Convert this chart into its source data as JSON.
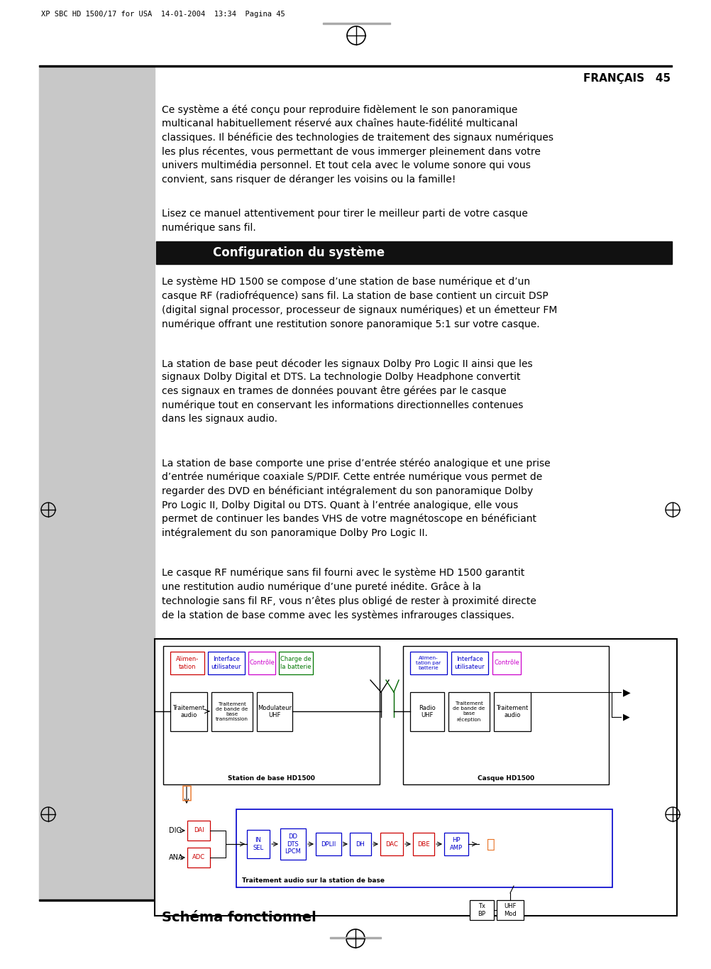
{
  "page_header": "XP SBC HD 1500/17 for USA  14-01-2004  13:34  Pagina 45",
  "section_right": "FRANÇAIS   45",
  "para1": "Ce système a été conçu pour reproduire fidèlement le son panoramique\nmulticanal habituellement réservé aux chaînes haute-fidélité multicanal\nclassiques. Il bénéficie des technologies de traitement des signaux numériques\nles plus récentes, vous permettant de vous immerger pleinement dans votre\nunivers multimédia personnel. Et tout cela avec le volume sonore qui vous\nconvient, sans risquer de déranger les voisins ou la famille!",
  "para2": "Lisez ce manuel attentivement pour tirer le meilleur parti de votre casque\nnumérique sans fil.",
  "section_title": "Configuration du système",
  "para3": "Le système HD 1500 se compose d’une station de base numérique et d’un\ncasque RF (radiofréquence) sans fil. La station de base contient un circuit DSP\n(digital signal processor, processeur de signaux numériques) et un émetteur FM\nnumérique offrant une restitution sonore panoramique 5:1 sur votre casque.",
  "para4": "La station de base peut décoder les signaux Dolby Pro Logic II ainsi que les\nsignaux Dolby Digital et DTS. La technologie Dolby Headphone convertit\nces signaux en trames de données pouvant être gérées par le casque\nnumérique tout en conservant les informations directionnelles contenues\ndans les signaux audio.",
  "para5": "La station de base comporte une prise d’entrée stéréo analogique et une prise\nd’entrée numérique coaxiale S/PDIF. Cette entrée numérique vous permet de\nregarder des DVD en bénéficiant intégralement du son panoramique Dolby\nPro Logic II, Dolby Digital ou DTS. Quant à l’entrée analogique, elle vous\npermet de continuer les bandes VHS de votre magnétoscope en bénéficiant\nintégralement du son panoramique Dolby Pro Logic II.",
  "para6": "Le casque RF numérique sans fil fourni avec le système HD 1500 garantit\nune restitution audio numérique d’une pureté inédite. Grâce à la\ntechnologie sans fil RF, vous n’êtes plus obligé de rester à proximité directe\nde la station de base comme avec les systèmes infrarouges classiques.",
  "schema_title": "Schéma fonctionnel",
  "bg_color": "#ffffff",
  "gray_bar_color": "#c8c8c8",
  "section_bg": "#111111",
  "section_text_color": "#ffffff",
  "text_color": "#000000",
  "red_color": "#cc0000",
  "blue_color": "#0000cc",
  "green_color": "#007700",
  "orange_color": "#e87020"
}
